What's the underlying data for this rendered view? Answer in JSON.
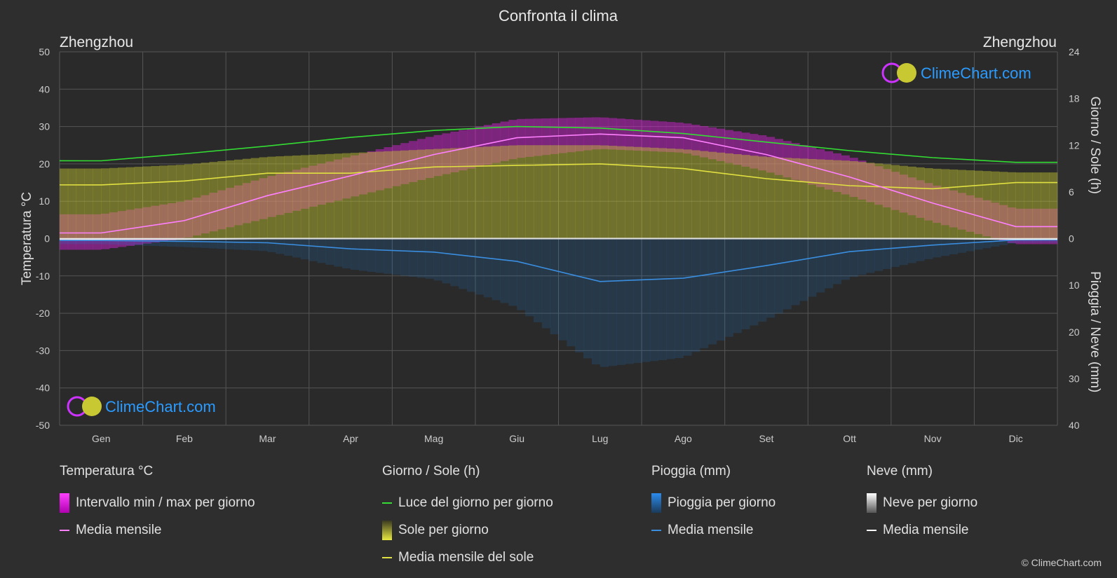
{
  "page_title": "Confronta il clima",
  "city_left": "Zhengzhou",
  "city_right": "Zhengzhou",
  "watermark": "ClimeChart.com",
  "copyright": "© ClimeChart.com",
  "colors": {
    "background": "#2e2e2e",
    "temp_range": "#e020e0",
    "temp_mean": "#ff80ff",
    "daylight": "#33dd33",
    "sunshine": "#c8c832",
    "sunshine_mean": "#e0e040",
    "rain": "#1e7fd8",
    "rain_mean": "#3a8ee0",
    "snow": "#cccccc",
    "snow_mean": "#ffffff"
  },
  "legend": {
    "temperature": {
      "title": "Temperatura °C",
      "items": [
        {
          "label": "Intervallo min / max per giorno"
        },
        {
          "label": "Media mensile"
        }
      ]
    },
    "daysun": {
      "title": "Giorno / Sole (h)",
      "items": [
        {
          "label": "Luce del giorno per giorno"
        },
        {
          "label": "Sole per giorno"
        },
        {
          "label": "Media mensile del sole"
        }
      ]
    },
    "rain": {
      "title": "Pioggia (mm)",
      "items": [
        {
          "label": "Pioggia per giorno"
        },
        {
          "label": "Media mensile"
        }
      ]
    },
    "snow": {
      "title": "Neve (mm)",
      "items": [
        {
          "label": "Neve per giorno"
        },
        {
          "label": "Media mensile"
        }
      ]
    }
  },
  "chart_data": {
    "type": "line",
    "title": "Confronta il clima",
    "categories": [
      "Gen",
      "Feb",
      "Mar",
      "Apr",
      "Mag",
      "Giu",
      "Lug",
      "Ago",
      "Set",
      "Ott",
      "Nov",
      "Dic"
    ],
    "y_left": {
      "label": "Temperatura °C",
      "range": [
        -50,
        50
      ],
      "ticks": [
        50,
        40,
        30,
        20,
        10,
        0,
        -10,
        -20,
        -30,
        -40,
        -50
      ]
    },
    "y_right_top": {
      "label": "Giorno / Sole (h)",
      "range": [
        0,
        24
      ],
      "ticks": [
        24,
        18,
        12,
        6,
        0
      ]
    },
    "y_right_bottom": {
      "label": "Pioggia / Neve (mm)",
      "range": [
        0,
        40
      ],
      "ticks": [
        0,
        10,
        20,
        30,
        40
      ]
    },
    "series": [
      {
        "name": "Media mensile",
        "group": "temperature",
        "unit": "°C",
        "values": [
          1.5,
          4.8,
          11.5,
          16.8,
          22.5,
          27.0,
          28.0,
          27.0,
          22.5,
          16.5,
          9.5,
          3.2
        ]
      },
      {
        "name": "Intervallo min / max per giorno (max)",
        "group": "temperature",
        "unit": "°C",
        "values": [
          6.5,
          10.0,
          16.5,
          22.0,
          27.5,
          32.0,
          32.5,
          31.0,
          27.5,
          22.0,
          14.5,
          8.0
        ]
      },
      {
        "name": "Intervallo min / max per giorno (min)",
        "group": "temperature",
        "unit": "°C",
        "values": [
          -3.0,
          0.0,
          5.5,
          11.0,
          16.5,
          21.5,
          24.0,
          23.0,
          18.0,
          11.5,
          4.5,
          -1.5
        ]
      },
      {
        "name": "Luce del giorno per giorno",
        "group": "daysun",
        "unit": "h",
        "values": [
          10.0,
          10.9,
          11.9,
          13.0,
          13.9,
          14.4,
          14.2,
          13.5,
          12.4,
          11.3,
          10.4,
          9.8
        ]
      },
      {
        "name": "Sole per giorno",
        "group": "daysun",
        "unit": "h",
        "values": [
          9.0,
          9.5,
          10.5,
          11.0,
          11.5,
          12.0,
          12.0,
          11.5,
          10.5,
          10.0,
          9.0,
          8.5
        ]
      },
      {
        "name": "Media mensile del sole",
        "group": "daysun",
        "unit": "h",
        "values": [
          6.9,
          7.4,
          8.4,
          8.4,
          9.2,
          9.4,
          9.6,
          9.0,
          7.7,
          6.8,
          6.4,
          7.2
        ]
      },
      {
        "name": "Pioggia media mensile",
        "group": "rain",
        "unit": "mm",
        "values": [
          0.4,
          0.6,
          0.9,
          2.2,
          2.9,
          4.9,
          9.2,
          8.5,
          5.8,
          2.8,
          1.4,
          0.3
        ]
      },
      {
        "name": "Neve media mensile",
        "group": "snow",
        "unit": "mm",
        "values": [
          0.1,
          0.1,
          0.0,
          0.0,
          0.0,
          0.0,
          0.0,
          0.0,
          0.0,
          0.0,
          0.0,
          0.1
        ]
      }
    ],
    "grid": true
  }
}
